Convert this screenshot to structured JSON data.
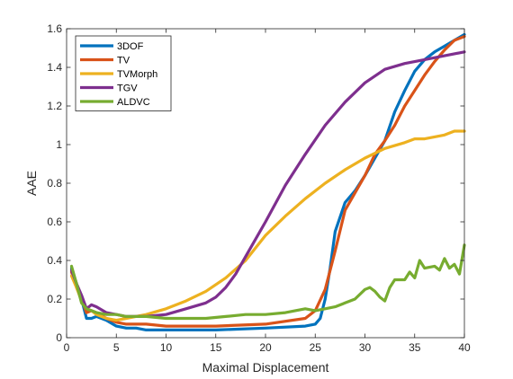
{
  "chart_data": {
    "type": "line",
    "xlabel": "Maximal Displacement",
    "ylabel": "AAE",
    "xlim": [
      0,
      40
    ],
    "ylim": [
      0,
      1.6
    ],
    "xticks": [
      0,
      5,
      10,
      15,
      20,
      25,
      30,
      35,
      40
    ],
    "yticks": [
      0,
      0.2,
      0.4,
      0.6,
      0.8,
      1,
      1.2,
      1.4,
      1.6
    ],
    "xtick_labels": [
      "0",
      "5",
      "10",
      "15",
      "20",
      "25",
      "30",
      "35",
      "40"
    ],
    "ytick_labels": [
      "0",
      "0.2",
      "0.4",
      "0.6",
      "0.8",
      "1",
      "1.2",
      "1.4",
      "1.6"
    ],
    "grid": false,
    "legend_position": "top-left",
    "series": [
      {
        "name": "3DOF",
        "color": "#0072bd",
        "x": [
          0.5,
          1,
          1.5,
          2,
          2.5,
          3,
          4,
          5,
          6,
          7,
          8,
          10,
          12,
          15,
          20,
          24,
          25,
          25.5,
          26,
          26.5,
          27,
          28,
          29,
          30,
          31,
          32,
          33,
          34,
          35,
          36,
          37,
          38,
          39,
          40
        ],
        "y": [
          0.36,
          0.28,
          0.2,
          0.1,
          0.1,
          0.11,
          0.09,
          0.06,
          0.05,
          0.05,
          0.04,
          0.04,
          0.04,
          0.04,
          0.05,
          0.06,
          0.07,
          0.1,
          0.2,
          0.36,
          0.55,
          0.7,
          0.76,
          0.84,
          0.93,
          1.02,
          1.17,
          1.28,
          1.38,
          1.44,
          1.48,
          1.51,
          1.54,
          1.57
        ]
      },
      {
        "name": "TV",
        "color": "#d95319",
        "x": [
          0.5,
          1,
          1.5,
          2,
          2.5,
          3,
          4,
          5,
          6,
          8,
          10,
          15,
          20,
          24,
          25,
          26,
          27,
          28,
          29,
          30,
          31,
          32,
          33,
          34,
          35,
          36,
          37,
          38,
          39,
          40
        ],
        "y": [
          0.34,
          0.26,
          0.2,
          0.13,
          0.14,
          0.13,
          0.1,
          0.08,
          0.07,
          0.07,
          0.06,
          0.06,
          0.07,
          0.1,
          0.14,
          0.25,
          0.45,
          0.66,
          0.75,
          0.84,
          0.95,
          1.02,
          1.1,
          1.2,
          1.28,
          1.36,
          1.43,
          1.49,
          1.54,
          1.56
        ]
      },
      {
        "name": "TVMorph",
        "color": "#edb120",
        "x": [
          0.5,
          1,
          1.5,
          2,
          2.5,
          3,
          4,
          5,
          6,
          8,
          10,
          12,
          14,
          16,
          18,
          20,
          22,
          24,
          26,
          28,
          30,
          32,
          34,
          35,
          36,
          37,
          38,
          39,
          40
        ],
        "y": [
          0.32,
          0.26,
          0.19,
          0.15,
          0.14,
          0.12,
          0.1,
          0.09,
          0.1,
          0.12,
          0.15,
          0.19,
          0.24,
          0.31,
          0.4,
          0.53,
          0.63,
          0.72,
          0.8,
          0.87,
          0.93,
          0.98,
          1.01,
          1.03,
          1.03,
          1.04,
          1.05,
          1.07,
          1.07
        ]
      },
      {
        "name": "TGV",
        "color": "#7e2f8e",
        "x": [
          0.5,
          1,
          1.5,
          2,
          2.5,
          3,
          4,
          5,
          6,
          8,
          10,
          12,
          14,
          15,
          16,
          17,
          18,
          20,
          22,
          24,
          26,
          28,
          30,
          32,
          34,
          36,
          38,
          40
        ],
        "y": [
          0.35,
          0.28,
          0.22,
          0.15,
          0.17,
          0.16,
          0.13,
          0.12,
          0.11,
          0.11,
          0.12,
          0.15,
          0.18,
          0.21,
          0.26,
          0.33,
          0.42,
          0.6,
          0.79,
          0.95,
          1.1,
          1.22,
          1.32,
          1.39,
          1.42,
          1.44,
          1.46,
          1.48
        ]
      },
      {
        "name": "ALDVC",
        "color": "#77ac30",
        "x": [
          0.5,
          1,
          1.5,
          2,
          2.5,
          3,
          4,
          5,
          6,
          8,
          10,
          13,
          14,
          16,
          18,
          20,
          22,
          24,
          25,
          26,
          27,
          28,
          29,
          30,
          30.5,
          31,
          31.5,
          32,
          32.5,
          33,
          34,
          34.5,
          35,
          35.5,
          36,
          37,
          37.5,
          38,
          38.5,
          39,
          39.5,
          40
        ],
        "y": [
          0.37,
          0.28,
          0.18,
          0.15,
          0.14,
          0.13,
          0.12,
          0.12,
          0.11,
          0.11,
          0.1,
          0.1,
          0.1,
          0.11,
          0.12,
          0.12,
          0.13,
          0.15,
          0.14,
          0.15,
          0.16,
          0.18,
          0.2,
          0.25,
          0.26,
          0.24,
          0.21,
          0.19,
          0.26,
          0.3,
          0.3,
          0.34,
          0.31,
          0.4,
          0.36,
          0.37,
          0.35,
          0.41,
          0.36,
          0.38,
          0.33,
          0.48
        ]
      }
    ]
  }
}
